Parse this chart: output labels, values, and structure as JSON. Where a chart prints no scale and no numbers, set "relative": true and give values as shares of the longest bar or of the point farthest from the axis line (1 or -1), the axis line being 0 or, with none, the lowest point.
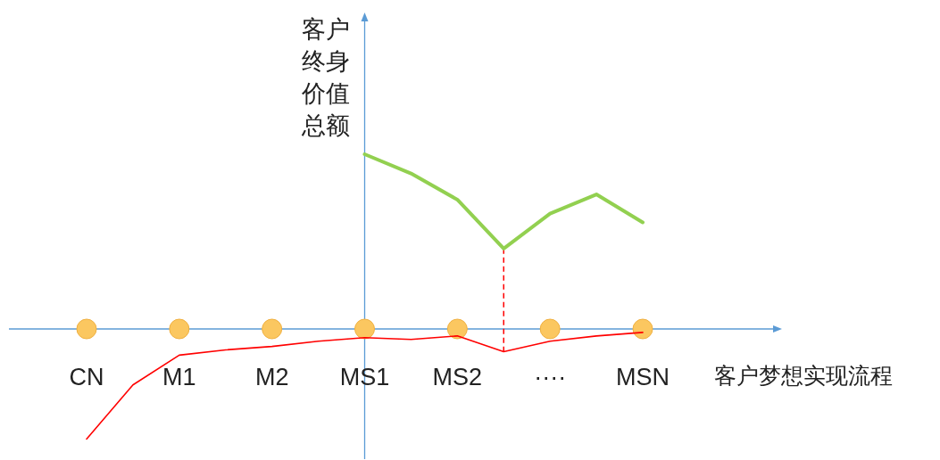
{
  "chart_data": {
    "type": "line",
    "relative": true,
    "ylabel": "客户终身价值总额",
    "xlabel": "客户梦想实现流程",
    "categories": [
      "CN",
      null,
      "M1",
      null,
      "M2",
      null,
      "MS1",
      null,
      "MS2",
      null,
      "····",
      null,
      "MSN"
    ],
    "series": [
      {
        "color": "#92d050",
        "values": [
          null,
          null,
          null,
          null,
          null,
          null,
          1.0,
          0.89,
          0.74,
          0.46,
          0.66,
          0.77,
          0.61
        ]
      },
      {
        "color": "#ff0000",
        "values": [
          -0.63,
          -0.32,
          -0.15,
          -0.12,
          -0.1,
          -0.07,
          -0.05,
          -0.06,
          -0.04,
          -0.13,
          -0.07,
          -0.04,
          -0.02
        ]
      },
      {
        "type": "scatter",
        "marker": "circle",
        "color": "#fbc760",
        "values": [
          0,
          null,
          0,
          null,
          0,
          null,
          0,
          null,
          0,
          null,
          0,
          null,
          0
        ]
      }
    ],
    "ref_lines": [
      {
        "axis": "x",
        "value": "MS1",
        "color": "#5b9bd5"
      }
    ]
  }
}
